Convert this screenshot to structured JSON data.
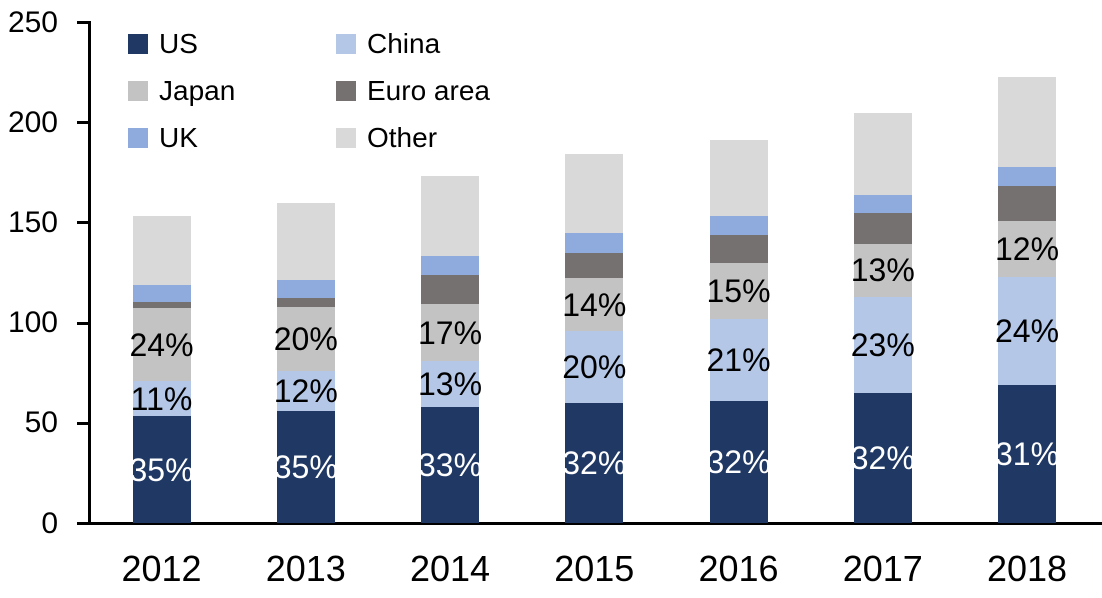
{
  "chart_data": {
    "type": "bar",
    "stacked": true,
    "title": "",
    "xlabel": "",
    "ylabel": "",
    "categories": [
      "2012",
      "2013",
      "2014",
      "2015",
      "2016",
      "2017",
      "2018"
    ],
    "series": [
      {
        "name": "US",
        "color": "#1f3864",
        "values": [
          53.5,
          56,
          58,
          60,
          61,
          65,
          69
        ],
        "labels": [
          "35%",
          "35%",
          "33%",
          "32%",
          "32%",
          "32%",
          "31%"
        ],
        "label_color": "#ffffff"
      },
      {
        "name": "China",
        "color": "#b4c7e7",
        "values": [
          17.5,
          20,
          23,
          36,
          41,
          48,
          54
        ],
        "labels": [
          "11%",
          "12%",
          "13%",
          "20%",
          "21%",
          "23%",
          "24%"
        ],
        "label_color": "#000000"
      },
      {
        "name": "Japan",
        "color": "#c3c3c3",
        "values": [
          36.5,
          32,
          28.5,
          26.5,
          28,
          26.5,
          28
        ],
        "labels": [
          "24%",
          "20%",
          "17%",
          "14%",
          "15%",
          "13%",
          "12%"
        ],
        "label_color": "#000000"
      },
      {
        "name": "Euro area",
        "color": "#767171",
        "values": [
          3,
          4.5,
          14.5,
          12.5,
          14,
          15.5,
          17.5
        ]
      },
      {
        "name": "UK",
        "color": "#8faadc",
        "values": [
          8.5,
          9,
          9.5,
          10,
          9.5,
          9,
          9.5
        ]
      },
      {
        "name": "Other",
        "color": "#d9d9d9",
        "values": [
          34.5,
          38.5,
          40,
          39.5,
          38,
          41,
          45
        ]
      }
    ],
    "ylim": [
      0,
      250
    ],
    "yticks": [
      0,
      50,
      100,
      150,
      200,
      250
    ],
    "grid": false,
    "legend_position": "top-left",
    "legend_columns": 2,
    "axis_color": "#000000",
    "background": "#ffffff"
  }
}
